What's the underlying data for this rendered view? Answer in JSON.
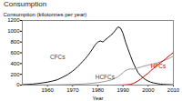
{
  "chart_data": {
    "type": "line",
    "title": "Consumption",
    "xlabel": "Year",
    "ylabel": "Consumption (kilotonnes per year)",
    "xlim": [
      1950,
      2010
    ],
    "ylim": [
      0,
      1200
    ],
    "xticks": [
      1960,
      1970,
      1980,
      1990,
      2000,
      2010
    ],
    "yticks": [
      0,
      200,
      400,
      600,
      800,
      1000,
      1200
    ],
    "grid": false,
    "series": [
      {
        "color": "#111111",
        "x": [
          1950,
          1952,
          1954,
          1956,
          1958,
          1960,
          1962,
          1964,
          1966,
          1968,
          1970,
          1971,
          1972,
          1973,
          1974,
          1975,
          1976,
          1977,
          1978,
          1979,
          1980,
          1981,
          1982,
          1983,
          1984,
          1985,
          1986,
          1987,
          1988,
          1989,
          1990,
          1991,
          1992,
          1993,
          1994,
          1995,
          1996,
          1997,
          1998,
          1999,
          2000,
          2001,
          2002,
          2003,
          2004,
          2005,
          2006,
          2007,
          2008,
          2009,
          2010
        ],
        "values": [
          8,
          12,
          18,
          28,
          40,
          55,
          75,
          100,
          145,
          195,
          260,
          300,
          340,
          390,
          440,
          490,
          545,
          610,
          680,
          750,
          800,
          820,
          800,
          840,
          880,
          920,
          960,
          1020,
          1080,
          1060,
          960,
          800,
          670,
          540,
          420,
          320,
          230,
          175,
          135,
          100,
          75,
          55,
          42,
          32,
          24,
          18,
          14,
          11,
          9,
          7,
          6
        ]
      },
      {
        "color": "#999999",
        "x": [
          1950,
          1955,
          1960,
          1965,
          1970,
          1975,
          1978,
          1980,
          1982,
          1984,
          1986,
          1988,
          1989,
          1990,
          1991,
          1992,
          1993,
          1994,
          1995,
          1996,
          1997,
          1998,
          1999,
          2000,
          2001,
          2002,
          2003,
          2004,
          2005,
          2006,
          2007,
          2008,
          2009,
          2010
        ],
        "values": [
          0,
          1,
          3,
          6,
          12,
          22,
          35,
          45,
          60,
          80,
          105,
          155,
          190,
          230,
          270,
          290,
          300,
          295,
          305,
          320,
          330,
          350,
          360,
          370,
          385,
          395,
          405,
          420,
          435,
          450,
          470,
          490,
          510,
          540
        ]
      },
      {
        "color": "#cc0000",
        "x": [
          1950,
          1985,
          1988,
          1990,
          1991,
          1992,
          1993,
          1994,
          1995,
          1996,
          1997,
          1998,
          1999,
          2000,
          2001,
          2002,
          2003,
          2004,
          2005,
          2006,
          2007,
          2008,
          2009,
          2010
        ],
        "values": [
          0,
          0,
          1,
          3,
          5,
          8,
          15,
          28,
          50,
          80,
          110,
          150,
          185,
          220,
          265,
          305,
          345,
          385,
          420,
          455,
          490,
          530,
          565,
          610
        ]
      }
    ],
    "annotations": [
      {
        "text": "CFCs",
        "x": 1961,
        "y": 480,
        "color": "#444444"
      },
      {
        "text": "HCFCs",
        "x": 1979,
        "y": 115,
        "color": "#444444"
      },
      {
        "text": "HFCs",
        "x": 2001,
        "y": 310,
        "color": "#cc0000"
      }
    ]
  }
}
